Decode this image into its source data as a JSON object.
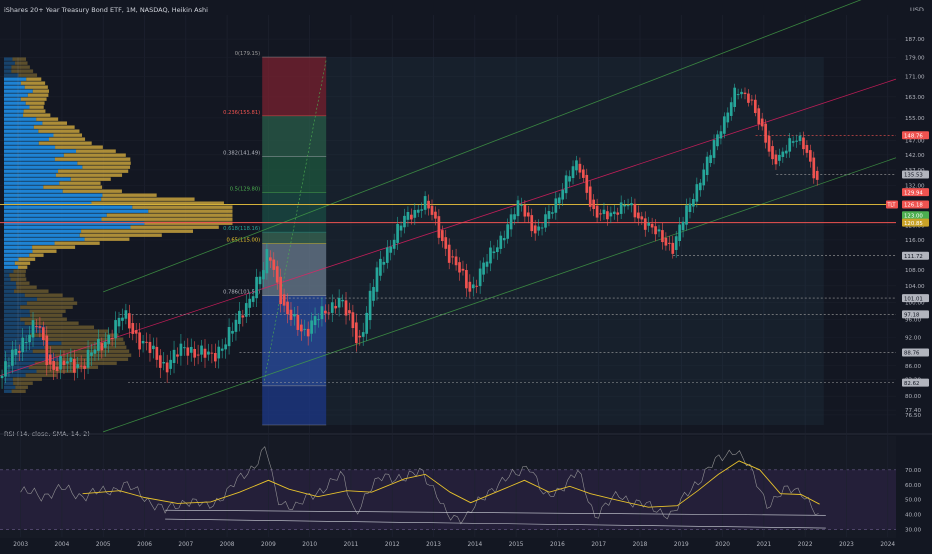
{
  "header": {
    "symbol_title": "iShares 20+ Year Treasury Bond ETF, 1M, NASDAQ, Heikin Ashi",
    "currency": "USD"
  },
  "colors": {
    "background": "#131722",
    "bull": "#26a69a",
    "bear": "#ef5350",
    "volume_profile_up": "#2196f3",
    "volume_profile_down": "#c8a23c",
    "channel": "#43a047",
    "midline": "#e91e63",
    "rsi_line": "#9e9e9e",
    "rsi_ma": "#e6c12c",
    "rsi_band": "#2a2140"
  },
  "chart_data": [
    {
      "type": "candlestick",
      "name": "price",
      "x_range": [
        2002.5,
        2024.2
      ],
      "ylim": [
        74.7,
        198
      ],
      "y_ticks": [
        {
          "v": 76.5,
          "label": "76.50"
        },
        {
          "v": 77.4,
          "label": "77.40"
        },
        {
          "v": 80.0,
          "label": "80.00"
        },
        {
          "v": 83.2,
          "label": "83.20"
        },
        {
          "v": 86.0,
          "label": "86.00"
        },
        {
          "v": 92.0,
          "label": "92.00"
        },
        {
          "v": 96.0,
          "label": "96.00"
        },
        {
          "v": 100.0,
          "label": "100.00"
        },
        {
          "v": 104.0,
          "label": "104.00"
        },
        {
          "v": 108.0,
          "label": "108.00"
        },
        {
          "v": 116.0,
          "label": "116.00"
        },
        {
          "v": 120.0,
          "label": "120.00"
        },
        {
          "v": 132.0,
          "label": "132.00"
        },
        {
          "v": 137.0,
          "label": "137.00"
        },
        {
          "v": 142.0,
          "label": "142.00"
        },
        {
          "v": 147.0,
          "label": "147.00"
        },
        {
          "v": 155.0,
          "label": "155.00"
        },
        {
          "v": 163.0,
          "label": "163.00"
        },
        {
          "v": 171.0,
          "label": "171.00"
        },
        {
          "v": 179.0,
          "label": "179.00"
        },
        {
          "v": 187.0,
          "label": "187.00"
        }
      ],
      "x_ticks": [
        "2003",
        "2004",
        "2005",
        "2006",
        "2007",
        "2008",
        "2009",
        "2010",
        "2011",
        "2012",
        "2013",
        "2014",
        "2015",
        "2016",
        "2017",
        "2018",
        "2019",
        "2020",
        "2021",
        "2022",
        "2023",
        "2024"
      ],
      "anchors": [
        [
          2002.55,
          84.0
        ],
        [
          2003.0,
          91.0
        ],
        [
          2003.4,
          95.0
        ],
        [
          2003.7,
          86.0
        ],
        [
          2004.5,
          86.5
        ],
        [
          2005.0,
          91.0
        ],
        [
          2005.5,
          97.0
        ],
        [
          2005.9,
          91.0
        ],
        [
          2006.5,
          86.0
        ],
        [
          2007.0,
          90.0
        ],
        [
          2007.6,
          87.5
        ],
        [
          2008.1,
          93.0
        ],
        [
          2008.9,
          108.0
        ],
        [
          2009.0,
          114.0
        ],
        [
          2009.4,
          97.0
        ],
        [
          2009.9,
          93.5
        ],
        [
          2010.7,
          101.0
        ],
        [
          2011.2,
          91.0
        ],
        [
          2011.7,
          110.0
        ],
        [
          2012.3,
          122.0
        ],
        [
          2012.8,
          127.0
        ],
        [
          2013.4,
          111.0
        ],
        [
          2013.9,
          103.0
        ],
        [
          2014.8,
          120.0
        ],
        [
          2015.1,
          127.0
        ],
        [
          2015.5,
          117.0
        ],
        [
          2016.5,
          140.0
        ],
        [
          2016.9,
          122.0
        ],
        [
          2017.7,
          126.0
        ],
        [
          2018.3,
          118.5
        ],
        [
          2018.8,
          114.0
        ],
        [
          2019.7,
          142.0
        ],
        [
          2020.3,
          165.0
        ],
        [
          2020.7,
          162.0
        ],
        [
          2021.2,
          139.0
        ],
        [
          2021.6,
          146.0
        ],
        [
          2021.9,
          147.0
        ],
        [
          2022.05,
          143.0
        ],
        [
          2022.35,
          130.0
        ]
      ],
      "candle_step": 0.0833,
      "price_labels": [
        {
          "v": 148.76,
          "label": "148.76",
          "color": "#ef5350"
        },
        {
          "v": 135.53,
          "label": "135.53",
          "color": "#b2b5be"
        },
        {
          "v": 129.94,
          "label": "129.94",
          "color": "#ef5350"
        },
        {
          "v": 126.18,
          "label": "126.18",
          "color": "#ef5350"
        },
        {
          "v": 123.0,
          "label": "123.00",
          "color": "#4caf50"
        },
        {
          "v": 120.85,
          "label": "120.85",
          "color": "#c9a227"
        },
        {
          "v": 111.72,
          "label": "111.72",
          "color": "#b2b5be"
        },
        {
          "v": 101.01,
          "label": "101.01",
          "color": "#b2b5be"
        },
        {
          "v": 97.18,
          "label": "97.18",
          "color": "#b2b5be"
        },
        {
          "v": 88.76,
          "label": "88.76",
          "color": "#b2b5be"
        },
        {
          "v": 82.62,
          "label": "82.62",
          "color": "#b2b5be"
        }
      ],
      "symbol_badge": "TLT",
      "horizontal_levels": [
        {
          "v": 148.76,
          "x_from": 2020.8,
          "style": "dashed",
          "color": "#ef5350"
        },
        {
          "v": 135.53,
          "x_from": 2021.3,
          "style": "dashed",
          "color": "#9e9e9e"
        },
        {
          "v": 126.18,
          "x_from": 2002.5,
          "style": "solid",
          "color": "#d4b13a"
        },
        {
          "v": 120.85,
          "x_from": 2002.5,
          "style": "solid",
          "color": "#ef5350"
        },
        {
          "v": 111.72,
          "x_from": 2018.8,
          "style": "dashed",
          "color": "#9e9e9e"
        },
        {
          "v": 101.01,
          "x_from": 2009.3,
          "style": "dashed",
          "color": "#9e9e9e"
        },
        {
          "v": 97.18,
          "x_from": 2005.4,
          "style": "dashed",
          "color": "#9e9e9e"
        },
        {
          "v": 88.76,
          "x_from": 2008.3,
          "style": "dashed",
          "color": "#9e9e9e"
        },
        {
          "v": 82.62,
          "x_from": 2005.6,
          "style": "dashed",
          "color": "#9e9e9e"
        }
      ],
      "fibonacci": {
        "x_from": 2008.85,
        "x_to": 2010.4,
        "extend_to": 2022.45,
        "levels": [
          {
            "v": 179.15,
            "label": "0(179.15)",
            "color": "#9e9e9e"
          },
          {
            "v": 155.81,
            "label": "0.236(155.81)",
            "color": "#ef5350"
          },
          {
            "v": 141.49,
            "label": "0.382(141.49)",
            "color": "#b2b5be"
          },
          {
            "v": 129.8,
            "label": "0.5(129.80)",
            "color": "#4caf50"
          },
          {
            "v": 118.16,
            "label": "0.618(118.16)",
            "color": "#26a69a"
          },
          {
            "v": 115.0,
            "label": "0.65(115.00)",
            "color": "#e6c12c"
          },
          {
            "v": 101.58,
            "label": "0.786(101.58)",
            "color": "#b2b5be"
          },
          {
            "v": 82.0,
            "label": "",
            "color": "#9e9e9e"
          },
          {
            "v": 74.7,
            "label": "",
            "color": "#9e9e9e"
          }
        ],
        "zone_colors": [
          "#7a2230",
          "#2a5d49",
          "#1f5a40",
          "#1b4d45",
          "#3a6a55",
          "#6b7d90",
          "#2b4fa3",
          "#1e3a8a"
        ]
      },
      "channel": {
        "lower": [
          [
            2005.0,
            73.5
          ],
          [
            2024.2,
            141.0
          ]
        ],
        "mid": [
          [
            2002.5,
            84.0
          ],
          [
            2024.2,
            170.0
          ]
        ],
        "upper": [
          [
            2005.0,
            102.5
          ],
          [
            2024.2,
            212.0
          ]
        ]
      },
      "volume_profile": {
        "price_from": 80.5,
        "price_to": 179.0,
        "rows": 84,
        "max_width": 0.255
      }
    },
    {
      "type": "line",
      "name": "rsi",
      "title": "RSI (14, close, SMA, 14, 2)",
      "ylim": [
        25,
        90
      ],
      "y_ticks": [
        {
          "v": 30,
          "label": "30.00"
        },
        {
          "v": 40,
          "label": "40.00"
        },
        {
          "v": 50,
          "label": "50.00"
        },
        {
          "v": 60,
          "label": "60.00"
        },
        {
          "v": 70,
          "label": "70.00"
        }
      ],
      "band": [
        30,
        70
      ],
      "rsi_anchors": [
        [
          2003.0,
          55
        ],
        [
          2003.5,
          53
        ],
        [
          2004.0,
          57
        ],
        [
          2004.5,
          53
        ],
        [
          2005.0,
          55
        ],
        [
          2005.5,
          60
        ],
        [
          2006.0,
          52
        ],
        [
          2006.5,
          42
        ],
        [
          2007.0,
          50
        ],
        [
          2007.5,
          45
        ],
        [
          2008.0,
          55
        ],
        [
          2008.7,
          75
        ],
        [
          2008.95,
          85
        ],
        [
          2009.2,
          50
        ],
        [
          2009.7,
          45
        ],
        [
          2010.2,
          56
        ],
        [
          2010.8,
          66
        ],
        [
          2011.1,
          42
        ],
        [
          2011.8,
          68
        ],
        [
          2012.3,
          62
        ],
        [
          2012.7,
          72
        ],
        [
          2013.3,
          40
        ],
        [
          2013.8,
          38
        ],
        [
          2014.4,
          58
        ],
        [
          2015.0,
          67
        ],
        [
          2015.3,
          75
        ],
        [
          2015.7,
          50
        ],
        [
          2016.5,
          68
        ],
        [
          2016.9,
          40
        ],
        [
          2017.5,
          53
        ],
        [
          2018.2,
          45
        ],
        [
          2018.8,
          40
        ],
        [
          2019.3,
          60
        ],
        [
          2019.7,
          72
        ],
        [
          2020.3,
          85
        ],
        [
          2020.6,
          73
        ],
        [
          2021.1,
          47
        ],
        [
          2021.6,
          57
        ],
        [
          2021.9,
          57
        ],
        [
          2022.1,
          48
        ],
        [
          2022.35,
          35
        ]
      ],
      "ma_anchors": [
        [
          2004.5,
          54
        ],
        [
          2005.4,
          56
        ],
        [
          2006.0,
          51.5
        ],
        [
          2006.8,
          47.5
        ],
        [
          2007.6,
          48.5
        ],
        [
          2008.3,
          55
        ],
        [
          2009.0,
          63
        ],
        [
          2009.5,
          57
        ],
        [
          2010.2,
          52
        ],
        [
          2010.9,
          56
        ],
        [
          2011.5,
          55
        ],
        [
          2012.3,
          64
        ],
        [
          2012.8,
          67
        ],
        [
          2013.4,
          55
        ],
        [
          2013.9,
          48
        ],
        [
          2014.6,
          56
        ],
        [
          2015.2,
          63
        ],
        [
          2015.8,
          55
        ],
        [
          2016.3,
          59
        ],
        [
          2016.8,
          54
        ],
        [
          2017.4,
          50
        ],
        [
          2018.2,
          45
        ],
        [
          2018.9,
          46
        ],
        [
          2019.4,
          56
        ],
        [
          2019.9,
          67
        ],
        [
          2020.4,
          76
        ],
        [
          2020.9,
          70
        ],
        [
          2021.4,
          54
        ],
        [
          2021.9,
          53.5
        ],
        [
          2022.35,
          47
        ]
      ],
      "trendlines": [
        [
          [
            2006.5,
            43
          ],
          [
            2022.5,
            39.5
          ]
        ],
        [
          [
            2006.5,
            37
          ],
          [
            2022.5,
            31
          ]
        ]
      ]
    }
  ]
}
